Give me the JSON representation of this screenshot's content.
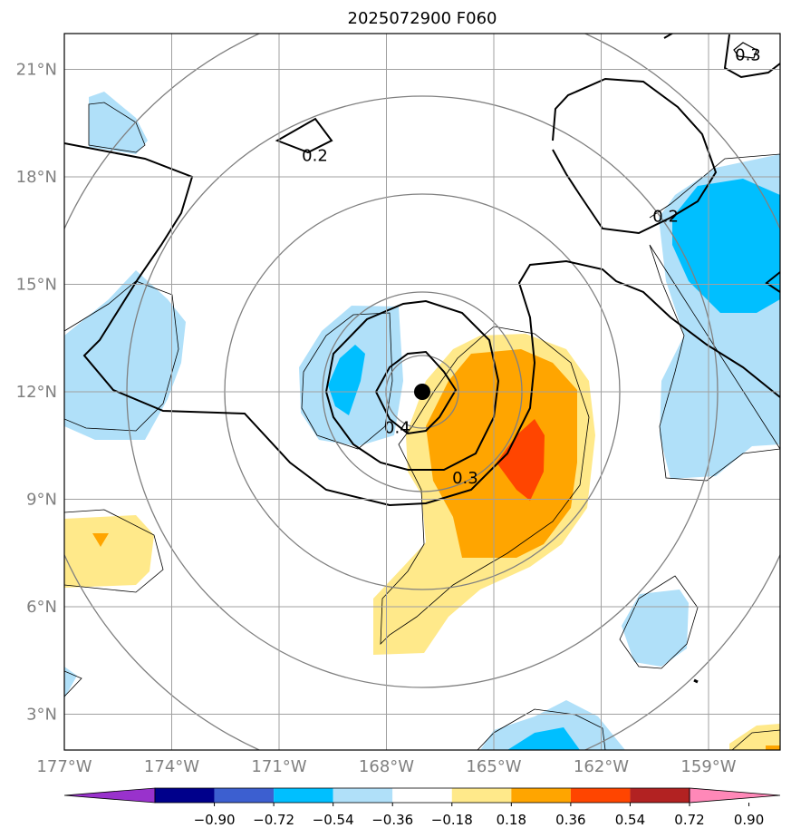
{
  "chart_data": {
    "type": "heatmap",
    "title": "2025072900 F060",
    "x_ticks": [
      "177°W",
      "174°W",
      "171°W",
      "168°W",
      "165°W",
      "162°W",
      "159°W"
    ],
    "y_ticks": [
      "21°N",
      "18°N",
      "15°N",
      "12°N",
      "9°N",
      "6°N",
      "3°N"
    ],
    "x_tick_values": [
      -177,
      -174,
      -171,
      -168,
      -165,
      -162,
      -159
    ],
    "y_tick_values": [
      21,
      18,
      15,
      12,
      9,
      6,
      3
    ],
    "xlim": [
      -177,
      -157
    ],
    "ylim": [
      2,
      22
    ],
    "grid": true,
    "center_marker": {
      "lon": -167,
      "lat": 12
    },
    "range_rings_deg": [
      1,
      3,
      6,
      9,
      12
    ],
    "colorbar": {
      "tick_labels": [
        "−0.90",
        "−0.72",
        "−0.54",
        "−0.36",
        "−0.18",
        "0.18",
        "0.36",
        "0.54",
        "0.72",
        "0.90"
      ],
      "bins": [
        {
          "lo": null,
          "hi": -0.9,
          "color": "#9932cc"
        },
        {
          "lo": -0.9,
          "hi": -0.72,
          "color": "#00008b"
        },
        {
          "lo": -0.72,
          "hi": -0.54,
          "color": "#3c5fd0"
        },
        {
          "lo": -0.54,
          "hi": -0.36,
          "color": "#00bfff"
        },
        {
          "lo": -0.36,
          "hi": -0.18,
          "color": "#b0e0f9"
        },
        {
          "lo": -0.18,
          "hi": 0.18,
          "color": "#ffffff"
        },
        {
          "lo": 0.18,
          "hi": 0.36,
          "color": "#ffe98a"
        },
        {
          "lo": 0.36,
          "hi": 0.54,
          "color": "#ffa500"
        },
        {
          "lo": 0.54,
          "hi": 0.72,
          "color": "#ff4500"
        },
        {
          "lo": 0.72,
          "hi": 0.9,
          "color": "#b22222"
        },
        {
          "lo": 0.9,
          "hi": null,
          "color": "#ff88b8"
        }
      ]
    },
    "contour_labels": [
      {
        "text": "0.2",
        "lon": -170.0,
        "lat": 18.6
      },
      {
        "text": "0.2",
        "lon": -160.2,
        "lat": 16.9
      },
      {
        "text": "0.3",
        "lon": -157.9,
        "lat": 21.4
      },
      {
        "text": "0.4",
        "lon": -167.7,
        "lat": 11.0
      },
      {
        "text": "0.3",
        "lon": -165.8,
        "lat": 9.6
      }
    ]
  }
}
